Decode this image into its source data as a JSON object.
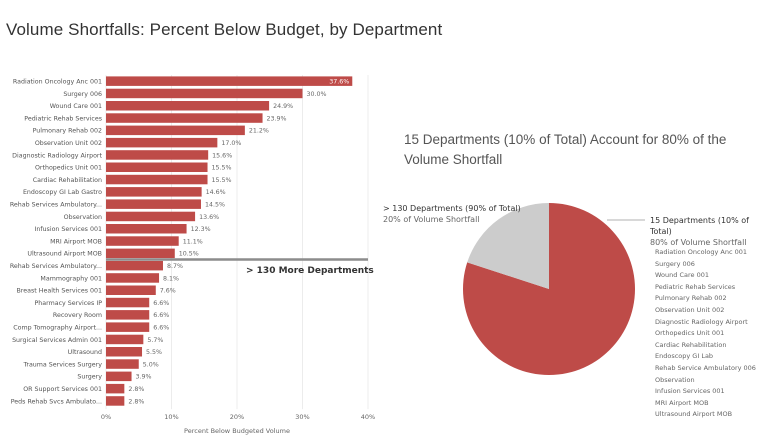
{
  "page": {
    "title": "Volume Shortfalls: Percent Below Budget, by Department"
  },
  "chart_data": [
    {
      "type": "bar",
      "orientation": "horizontal",
      "categories": [
        "Radiation Oncology Anc 001",
        "Surgery 006",
        "Wound Care 001",
        "Pediatric Rehab Services",
        "Pulmonary Rehab 002",
        "Observation Unit 002",
        "Diagnostic Radiology Airport",
        "Orthopedics Unit 001",
        "Cardiac Rehabilitation",
        "Endoscopy GI Lab Gastro",
        "Rehab Services Ambulatory...",
        "Observation",
        "Infusion Services 001",
        "MRI Airport MOB",
        "Ultrasound Airport MOB",
        "Rehab Services Ambulatory...",
        "Mammography 001",
        "Breast Health Services 001",
        "Pharmacy Services IP",
        "Recovery Room",
        "Comp Tomography Airport...",
        "Surgical Services Admin 001",
        "Ultrasound",
        "Trauma Services Surgery",
        "Surgery",
        "OR Support Services 001",
        "Peds Rehab Svcs Ambulato..."
      ],
      "values": [
        37.6,
        30.0,
        24.9,
        23.9,
        21.2,
        17.0,
        15.6,
        15.5,
        15.5,
        14.6,
        14.5,
        13.6,
        12.3,
        11.1,
        10.5,
        8.7,
        8.1,
        7.6,
        6.6,
        6.6,
        6.6,
        5.7,
        5.5,
        5.0,
        3.9,
        2.8,
        2.8
      ],
      "data_labels": [
        "37.6%",
        "30.0%",
        "24.9%",
        "23.9%",
        "21.2%",
        "17.0%",
        "15.6%",
        "15.5%",
        "15.5%",
        "14.6%",
        "14.5%",
        "13.6%",
        "12.3%",
        "11.1%",
        "10.5%",
        "8.7%",
        "8.1%",
        "7.6%",
        "6.6%",
        "6.6%",
        "6.6%",
        "5.7%",
        "5.5%",
        "5.0%",
        "3.9%",
        "2.8%",
        "2.8%"
      ],
      "xlabel": "Percent Below Budgeted Volume",
      "ylabel": "",
      "xlim": [
        0,
        40
      ],
      "xticks": [
        0,
        10,
        20,
        30,
        40
      ],
      "xtick_labels": [
        "0%",
        "10%",
        "20%",
        "30%",
        "40%"
      ],
      "grid": true,
      "bar_color": "#be4b48",
      "divider_after_index": 14,
      "divider_color": "#8c8c8c",
      "annotation": "> 130 More Departments"
    },
    {
      "type": "pie",
      "title": "15 Departments (10% of Total) Account for 80% of the Volume Shortfall",
      "slices": [
        {
          "name": "15 Departments (10% of Total)",
          "value": 80,
          "subtitle": "80% of Volume Shortfall",
          "color": "#be4b48"
        },
        {
          "name": "> 130 Departments (90% of Total)",
          "value": 20,
          "subtitle": "20% of Volume Shortfall",
          "color": "#cccccc"
        }
      ],
      "top_departments": [
        "Radiation Oncology Anc 001",
        "Surgery 006",
        "Wound Care 001",
        "Pediatric Rehab Services",
        "Pulmonary Rehab 002",
        "Observation Unit 002",
        "Diagnostic Radiology Airport",
        "Orthopedics Unit 001",
        "Cardiac Rehabilitation",
        "Endoscopy GI Lab",
        "Rehab Service Ambulatory 006",
        "Observation",
        "Infusion Services 001",
        "MRI Airport MOB",
        "Ultrasound Airport MOB"
      ]
    }
  ]
}
